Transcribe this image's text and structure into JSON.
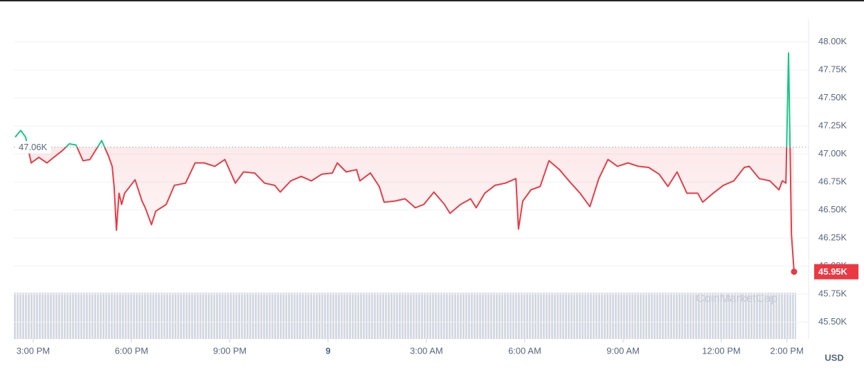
{
  "chart_data": {
    "type": "line",
    "x": [
      14.45,
      14.62,
      14.77,
      14.94,
      15.17,
      15.42,
      15.63,
      15.89,
      16.1,
      16.31,
      16.52,
      16.73,
      16.94,
      17.09,
      17.3,
      17.41,
      17.47,
      17.54,
      17.62,
      17.7,
      17.79,
      18.11,
      18.32,
      18.42,
      18.61,
      18.74,
      19.06,
      19.31,
      19.65,
      19.94,
      20.22,
      20.54,
      20.85,
      21.17,
      21.42,
      21.76,
      22.06,
      22.37,
      22.54,
      22.86,
      23.18,
      23.49,
      23.81,
      24.13,
      24.28,
      24.55,
      24.87,
      24.97,
      25.29,
      25.56,
      25.71,
      26.03,
      26.35,
      26.66,
      26.92,
      27.23,
      27.55,
      27.72,
      28.04,
      28.35,
      28.52,
      28.78,
      29.09,
      29.41,
      29.73,
      29.81,
      29.94,
      30.19,
      30.47,
      30.74,
      31.06,
      31.35,
      31.69,
      31.99,
      32.26,
      32.54,
      32.83,
      33.15,
      33.47,
      33.78,
      34.1,
      34.37,
      34.65,
      34.95,
      35.28,
      35.43,
      35.75,
      36.06,
      36.38,
      36.7,
      36.85,
      37.16,
      37.48,
      37.76,
      37.86,
      37.97,
      38.05,
      38.14,
      38.22
    ],
    "values": [
      47150,
      47210,
      47150,
      46920,
      46970,
      46920,
      46970,
      47030,
      47090,
      47080,
      46940,
      46950,
      47050,
      47120,
      46980,
      46890,
      46710,
      46320,
      46650,
      46550,
      46650,
      46770,
      46580,
      46520,
      46370,
      46490,
      46550,
      46720,
      46740,
      46920,
      46920,
      46890,
      46950,
      46740,
      46840,
      46830,
      46740,
      46720,
      46660,
      46760,
      46800,
      46760,
      46820,
      46830,
      46920,
      46840,
      46860,
      46760,
      46830,
      46710,
      46570,
      46580,
      46600,
      46520,
      46550,
      46660,
      46550,
      46470,
      46550,
      46600,
      46520,
      46650,
      46720,
      46740,
      46780,
      46330,
      46580,
      46680,
      46710,
      46940,
      46860,
      46760,
      46650,
      46530,
      46780,
      46950,
      46890,
      46920,
      46890,
      46880,
      46820,
      46710,
      46840,
      46650,
      46650,
      46570,
      46650,
      46720,
      46760,
      46880,
      46890,
      46780,
      46760,
      46680,
      46760,
      46740,
      47900,
      46280,
      45950
    ],
    "colors": {
      "up": "#16c784",
      "down": "#ea3943"
    },
    "reference_line": {
      "value": 47060,
      "label": "47.06K"
    },
    "last_price": {
      "value": 45950,
      "label": "45.95K"
    },
    "xlim": [
      14.41,
      38.6
    ],
    "xticks": [
      {
        "value": 15,
        "label": "3:00 PM"
      },
      {
        "value": 18,
        "label": "6:00 PM"
      },
      {
        "value": 21,
        "label": "9:00 PM"
      },
      {
        "value": 24,
        "label": "9"
      },
      {
        "value": 27,
        "label": "3:00 AM"
      },
      {
        "value": 30,
        "label": "6:00 AM"
      },
      {
        "value": 33,
        "label": "9:00 AM"
      },
      {
        "value": 36,
        "label": "12:00 PM"
      },
      {
        "value": 38,
        "label": "2:00 PM"
      }
    ],
    "ylim": [
      45350,
      48200
    ],
    "yticks": [
      {
        "value": 45500,
        "label": "45.50K"
      },
      {
        "value": 45750,
        "label": "45.75K"
      },
      {
        "value": 46000,
        "label": "46.00K"
      },
      {
        "value": 46250,
        "label": "46.25K"
      },
      {
        "value": 46500,
        "label": "46.50K"
      },
      {
        "value": 46750,
        "label": "46.75K"
      },
      {
        "value": 47000,
        "label": "47.00K"
      },
      {
        "value": 47250,
        "label": "47.25K"
      },
      {
        "value": 47500,
        "label": "47.50K"
      },
      {
        "value": 47750,
        "label": "47.75K"
      },
      {
        "value": 48000,
        "label": "48.00K"
      }
    ],
    "grid": true,
    "currency": "USD",
    "watermark": "CoinMarketCap"
  }
}
